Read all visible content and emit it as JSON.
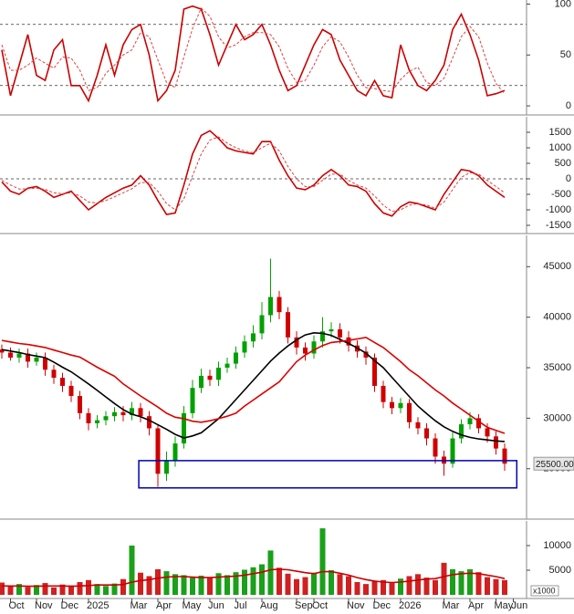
{
  "chart_data": [
    {
      "type": "line",
      "ylim": [
        -8,
        104
      ],
      "yticks": [
        0,
        50,
        100
      ],
      "levels": [
        80,
        20
      ],
      "series": [
        {
          "color": "#cc0000",
          "values": [
            55,
            10,
            40,
            70,
            30,
            25,
            55,
            65,
            20,
            20,
            5,
            30,
            60,
            30,
            60,
            75,
            80,
            50,
            5,
            15,
            35,
            95,
            98,
            95,
            70,
            40,
            60,
            80,
            65,
            70,
            80,
            60,
            35,
            15,
            20,
            40,
            60,
            75,
            70,
            45,
            30,
            15,
            10,
            25,
            10,
            8,
            60,
            35,
            20,
            15,
            25,
            40,
            75,
            90,
            70,
            45,
            10,
            12,
            15,
            null
          ]
        },
        {
          "color": "#e04040",
          "dashed": true,
          "values": [
            60,
            35,
            35,
            40,
            47,
            42,
            37,
            48,
            47,
            35,
            15,
            18,
            32,
            40,
            50,
            55,
            72,
            68,
            45,
            23,
            18,
            48,
            76,
            96,
            88,
            68,
            57,
            60,
            68,
            72,
            72,
            70,
            58,
            37,
            23,
            25,
            40,
            58,
            68,
            63,
            48,
            30,
            18,
            17,
            15,
            14,
            26,
            34,
            38,
            23,
            20,
            27,
            47,
            68,
            78,
            68,
            42,
            22,
            12,
            null
          ]
        }
      ]
    },
    {
      "type": "line",
      "ylim": [
        -1735,
        2000
      ],
      "yticks": [
        -1500,
        -1000,
        -500,
        0,
        500,
        1000,
        1500
      ],
      "levels": [
        0
      ],
      "series": [
        {
          "color": "#cc0000",
          "values": [
            -100,
            -400,
            -500,
            -300,
            -250,
            -400,
            -600,
            -500,
            -400,
            -700,
            -1000,
            -800,
            -600,
            -450,
            -300,
            -200,
            100,
            -200,
            -700,
            -1150,
            -1100,
            -200,
            800,
            1400,
            1550,
            1300,
            1000,
            900,
            850,
            800,
            1200,
            1200,
            600,
            100,
            -300,
            -350,
            -200,
            100,
            300,
            100,
            -200,
            -250,
            -400,
            -800,
            -1100,
            -1200,
            -900,
            -750,
            -800,
            -900,
            -1000,
            -500,
            -100,
            300,
            250,
            100,
            -200,
            -400,
            -600,
            null
          ]
        },
        {
          "color": "#e04040",
          "dashed": true,
          "values": [
            -50,
            -200,
            -330,
            -320,
            -300,
            -340,
            -450,
            -480,
            -450,
            -550,
            -750,
            -780,
            -700,
            -580,
            -450,
            -320,
            -120,
            -120,
            -400,
            -800,
            -1000,
            -650,
            100,
            800,
            1250,
            1350,
            1150,
            1000,
            900,
            840,
            1000,
            1150,
            900,
            400,
            0,
            -250,
            -250,
            -50,
            150,
            150,
            -50,
            -200,
            -300,
            -550,
            -850,
            -1050,
            -1000,
            -850,
            -800,
            -850,
            -950,
            -750,
            -350,
            50,
            200,
            150,
            -50,
            -250,
            -450,
            null
          ]
        }
      ]
    },
    {
      "type": "candlestick",
      "ylim": [
        20100,
        48100
      ],
      "yticks": [
        25000,
        30000,
        35000,
        40000,
        45000
      ],
      "up_color": "#00a000",
      "down_color": "#d00000",
      "open": [
        36800,
        36500,
        36000,
        36400,
        35600,
        36000,
        34800,
        34000,
        33200,
        32200,
        30500,
        29500,
        29800,
        30200,
        30600,
        30300,
        31000,
        30200,
        29000,
        24500,
        25800,
        27500,
        30500,
        33000,
        34200,
        33800,
        35000,
        35400,
        36500,
        37600,
        38400,
        40200,
        42000,
        40500,
        38000,
        37000,
        36400,
        37600,
        38600,
        38800,
        38000,
        37200,
        36600,
        36000,
        33200,
        31600,
        31000,
        31500,
        29600,
        29000,
        28000,
        26200,
        25500,
        28000,
        29400,
        30000,
        29000,
        28200,
        27000,
        null
      ],
      "high": [
        37300,
        37000,
        36900,
        36900,
        36500,
        36500,
        35300,
        34500,
        33700,
        32700,
        31000,
        30300,
        30700,
        31100,
        31200,
        31600,
        31500,
        30700,
        29400,
        26700,
        28200,
        31200,
        33800,
        34900,
        34800,
        35600,
        36000,
        37100,
        38200,
        39200,
        41500,
        45800,
        42600,
        41000,
        38600,
        37500,
        38200,
        40000,
        39500,
        39400,
        38600,
        37700,
        37100,
        36400,
        33700,
        32100,
        32000,
        31900,
        30100,
        29500,
        28500,
        26800,
        28600,
        29900,
        30600,
        30400,
        29500,
        28700,
        27500,
        null
      ],
      "low": [
        35900,
        35700,
        35500,
        35000,
        35200,
        34200,
        33400,
        32600,
        31600,
        29900,
        28800,
        29000,
        29300,
        29700,
        29700,
        29800,
        29600,
        28300,
        23200,
        23800,
        25200,
        27000,
        30000,
        32500,
        33200,
        33200,
        34500,
        34900,
        36000,
        37000,
        37800,
        39500,
        39800,
        37400,
        36300,
        35700,
        35900,
        37000,
        38000,
        37400,
        36600,
        36000,
        35300,
        32600,
        31000,
        30400,
        30500,
        29000,
        28400,
        27300,
        25500,
        24300,
        25100,
        27500,
        28900,
        28500,
        27600,
        26400,
        24800,
        null
      ],
      "close": [
        36500,
        36000,
        36400,
        35600,
        36000,
        34800,
        34000,
        33200,
        32200,
        30500,
        29500,
        29800,
        30200,
        30600,
        30300,
        31000,
        30200,
        29000,
        24500,
        25800,
        27500,
        30500,
        33000,
        34200,
        33800,
        35000,
        35400,
        36500,
        37600,
        38400,
        40200,
        42000,
        40500,
        38000,
        37000,
        36400,
        37600,
        38600,
        38800,
        38000,
        37200,
        36600,
        36000,
        33200,
        31600,
        31000,
        31500,
        29600,
        29000,
        28000,
        26200,
        25500,
        28000,
        29400,
        30000,
        29000,
        28200,
        27000,
        25500,
        null
      ],
      "series": [
        {
          "color": "#000000",
          "values": [
            36800,
            36650,
            36500,
            36300,
            36150,
            36000,
            35550,
            35050,
            34600,
            34000,
            33400,
            32750,
            32100,
            31450,
            30850,
            30400,
            30150,
            29800,
            29350,
            28900,
            28400,
            28050,
            28250,
            28550,
            29250,
            29950,
            30900,
            31850,
            32800,
            33750,
            34700,
            35650,
            36450,
            37150,
            37750,
            38250,
            38450,
            38400,
            38200,
            37800,
            37400,
            36950,
            36450,
            35700,
            35000,
            34050,
            33100,
            32150,
            31200,
            30450,
            29750,
            29150,
            28700,
            28350,
            28100,
            27950,
            27850,
            27750,
            27700,
            null
          ]
        },
        {
          "color": "#dd0000",
          "values": [
            37700,
            37550,
            37400,
            37300,
            37150,
            37000,
            36750,
            36500,
            36250,
            36050,
            35550,
            35050,
            34600,
            34150,
            33400,
            32800,
            32200,
            31650,
            31100,
            30500,
            30100,
            29950,
            29700,
            29600,
            29750,
            29950,
            30200,
            30500,
            31200,
            31800,
            32400,
            33000,
            33600,
            34600,
            35600,
            36250,
            36750,
            37200,
            37500,
            37600,
            37700,
            37850,
            38000,
            37500,
            37000,
            36300,
            35600,
            34800,
            34200,
            33500,
            32800,
            32200,
            31500,
            30900,
            30300,
            29700,
            29100,
            28800,
            28500,
            null
          ]
        }
      ],
      "highlight_box": {
        "x": [
          15.8,
          59.4
        ],
        "y": [
          23100,
          25800
        ],
        "color": "#0000b0"
      },
      "last_price": {
        "value": 25500,
        "label": "25500.00"
      }
    },
    {
      "type": "bar",
      "ylim": [
        -550,
        15000
      ],
      "yticks": [
        5000,
        10000
      ],
      "unit_label": "x1000",
      "up_color": "#1aa01a",
      "down_color": "#d02020",
      "values": [
        2500,
        1800,
        2200,
        1600,
        2000,
        2400,
        1500,
        2100,
        1900,
        2600,
        3000,
        2200,
        1800,
        2300,
        3200,
        10000,
        4500,
        3800,
        5200,
        4800,
        4200,
        4000,
        3500,
        3900,
        3600,
        4400,
        4000,
        4600,
        5100,
        5600,
        6200,
        9000,
        5500,
        4300,
        3200,
        3600,
        4500,
        13500,
        5000,
        4200,
        3800,
        2600,
        2200,
        2800,
        3000,
        2400,
        3300,
        3800,
        4200,
        3500,
        3000,
        6500,
        5200,
        4800,
        5200,
        4600,
        3600,
        3200,
        3000,
        null
      ],
      "series": [
        {
          "color": "#cc0000",
          "values": [
            1800,
            1800,
            1800,
            1750,
            1750,
            1800,
            1800,
            1800,
            1750,
            1800,
            1900,
            2000,
            2000,
            2000,
            2100,
            2600,
            2900,
            3100,
            3400,
            3600,
            3700,
            3700,
            3600,
            3500,
            3500,
            3600,
            3700,
            3800,
            4000,
            4300,
            4600,
            5100,
            5200,
            5100,
            4800,
            4500,
            4300,
            4700,
            4700,
            4400,
            4000,
            3500,
            3100,
            2800,
            2600,
            2500,
            2600,
            2800,
            3000,
            3200,
            3300,
            3700,
            4100,
            4300,
            4400,
            4300,
            4000,
            3700,
            3300,
            null
          ]
        }
      ],
      "categories": [
        null,
        "Oct",
        null,
        null,
        "Nov",
        null,
        null,
        "Dec",
        null,
        null,
        "2025",
        null,
        null,
        null,
        null,
        "Mar",
        null,
        null,
        "Apr",
        null,
        null,
        "May",
        null,
        null,
        "Jun",
        null,
        null,
        "Jul",
        null,
        null,
        "Aug",
        null,
        null,
        null,
        "Sep",
        null,
        "Oct",
        null,
        null,
        null,
        "Nov",
        null,
        null,
        "Dec",
        null,
        null,
        "2026",
        null,
        null,
        null,
        null,
        "Mar",
        null,
        null,
        "Apr",
        null,
        null,
        "May",
        null,
        "Jun"
      ]
    }
  ]
}
